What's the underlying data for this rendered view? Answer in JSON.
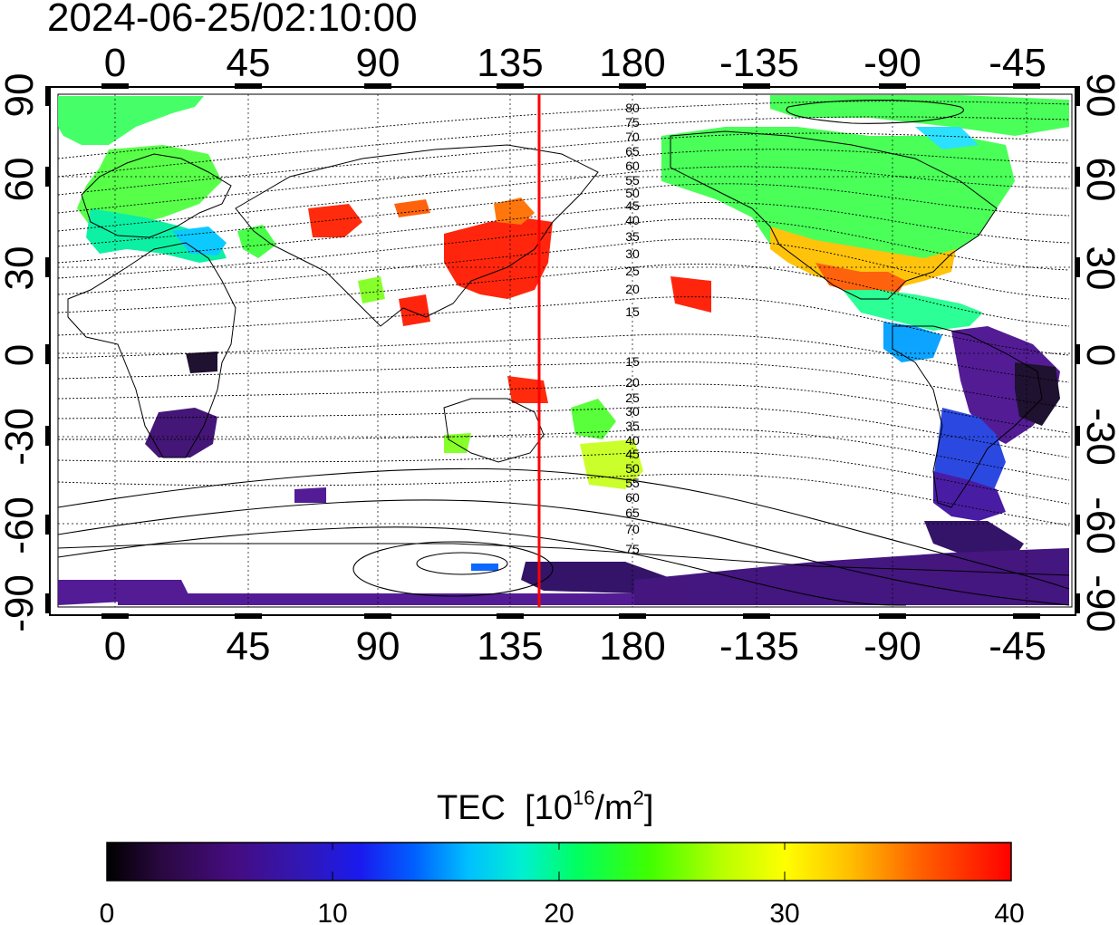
{
  "title": "2024-06-25/02:10:00",
  "top_axis_labels": [
    "0",
    "45",
    "90",
    "135",
    "180",
    "-135",
    "-90",
    "-45"
  ],
  "bottom_axis_labels": [
    "0",
    "45",
    "90",
    "135",
    "180",
    "-135",
    "-90",
    "-45"
  ],
  "left_axis_labels": [
    "90",
    "60",
    "30",
    "0",
    "-30",
    "-60",
    "-90"
  ],
  "right_axis_labels": [
    "90",
    "60",
    "30",
    "0",
    "-30",
    "-60",
    "-90"
  ],
  "contour_labels_north": [
    "80",
    "75",
    "70",
    "65",
    "60",
    "55",
    "50",
    "45",
    "40",
    "35",
    "30",
    "25",
    "20",
    "15"
  ],
  "contour_labels_south": [
    "15",
    "20",
    "25",
    "30",
    "35",
    "40",
    "45",
    "50",
    "55",
    "60",
    "65",
    "70",
    "75"
  ],
  "colorbar": {
    "label": "TEC",
    "unit_prefix": "[10",
    "unit_exp": "16",
    "unit_mid": "/m",
    "unit_exp2": "2",
    "unit_suffix": "]",
    "ticks": [
      "0",
      "10",
      "20",
      "30",
      "40"
    ],
    "range": [
      0,
      40
    ],
    "colors": [
      "#000000",
      "#3a0a5e",
      "#4b0e8a",
      "#1e1ee6",
      "#0055ff",
      "#00c8ff",
      "#00f0c0",
      "#00ff40",
      "#60ff00",
      "#c8ff00",
      "#ffff00",
      "#ffb000",
      "#ff6000",
      "#ff0000"
    ]
  },
  "map": {
    "lon_range": [
      "-20",
      "340"
    ],
    "lat_range": [
      -90,
      90
    ],
    "grid": "dotted",
    "marker_line_lon": 147,
    "marker_line_color": "#ff0000"
  }
}
